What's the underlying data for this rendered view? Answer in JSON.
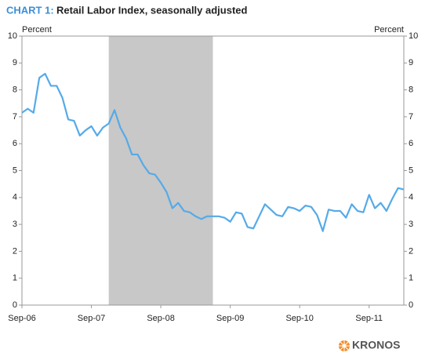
{
  "chart_data": {
    "type": "line",
    "title_label": "CHART 1:",
    "title": "Retail Labor Index, seasonally adjusted",
    "y_label": "Percent",
    "y2_label": "Percent",
    "logo": "KRONOS",
    "categories": [
      "Sep-06",
      null,
      null,
      null,
      null,
      null,
      null,
      null,
      null,
      null,
      null,
      null,
      "Sep-07",
      null,
      null,
      null,
      null,
      null,
      null,
      null,
      null,
      null,
      null,
      null,
      "Sep-08",
      null,
      null,
      null,
      null,
      null,
      null,
      null,
      null,
      null,
      null,
      null,
      "Sep-09",
      null,
      null,
      null,
      null,
      null,
      null,
      null,
      null,
      null,
      null,
      null,
      "Sep-10",
      null,
      null,
      null,
      null,
      null,
      null,
      null,
      null,
      null,
      null,
      null,
      "Sep-11",
      null,
      null,
      null,
      null,
      null,
      null
    ],
    "series": [
      {
        "name": "Retail Labor Index",
        "color": "#55aae8",
        "values": [
          7.15,
          7.3,
          7.15,
          8.45,
          8.6,
          8.15,
          8.15,
          7.7,
          6.9,
          6.85,
          6.3,
          6.5,
          6.65,
          6.3,
          6.6,
          6.75,
          7.25,
          6.6,
          6.2,
          5.6,
          5.6,
          5.2,
          4.9,
          4.85,
          4.55,
          4.2,
          3.6,
          3.8,
          3.5,
          3.45,
          3.3,
          3.2,
          3.3,
          3.3,
          3.3,
          3.25,
          3.1,
          3.45,
          3.4,
          2.9,
          2.85,
          3.3,
          3.75,
          3.55,
          3.35,
          3.3,
          3.65,
          3.6,
          3.5,
          3.7,
          3.65,
          3.35,
          2.75,
          3.55,
          3.5,
          3.5,
          3.25,
          3.75,
          3.5,
          3.45,
          4.1,
          3.6,
          3.8,
          3.5,
          3.95,
          4.35,
          4.3
        ]
      }
    ],
    "shade_categories": [
      15,
      33
    ],
    "shade_color": "#c8c8c8",
    "ylim": [
      0,
      10
    ],
    "yticks": [
      0,
      1,
      2,
      3,
      4,
      5,
      6,
      7,
      8,
      9,
      10
    ],
    "y2lim": [
      0,
      10
    ],
    "y2ticks": [
      0,
      1,
      2,
      3,
      4,
      5,
      6,
      7,
      8,
      9,
      10
    ],
    "grid": false
  }
}
